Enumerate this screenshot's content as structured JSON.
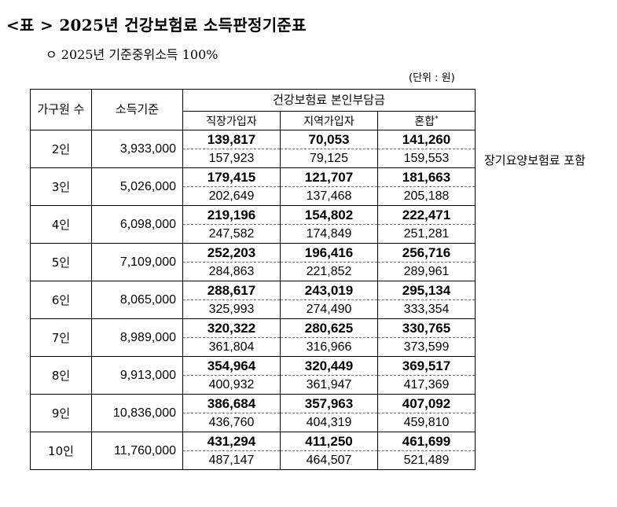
{
  "title": "<표 > 2025년 건강보험료 소득판정기준표",
  "subtitle": "ㅇ 2025년 기준중위소득 100%",
  "unit": "(단위 : 원)",
  "header": {
    "household": "가구원 수",
    "income": "소득기준",
    "group": "건강보험료 본인부담금",
    "employee": "직장가입자",
    "regional": "지역가입자",
    "mixed": "혼합",
    "mixed_mark": "*"
  },
  "rows": [
    {
      "household": "2인",
      "income": "3,933,000",
      "employee": "139,817",
      "regional": "70,053",
      "mixed": "141,260",
      "employee_ltc": "157,923",
      "regional_ltc": "79,125",
      "mixed_ltc": "159,553"
    },
    {
      "household": "3인",
      "income": "5,026,000",
      "employee": "179,415",
      "regional": "121,707",
      "mixed": "181,663",
      "employee_ltc": "202,649",
      "regional_ltc": "137,468",
      "mixed_ltc": "205,188"
    },
    {
      "household": "4인",
      "income": "6,098,000",
      "employee": "219,196",
      "regional": "154,802",
      "mixed": "222,471",
      "employee_ltc": "247,582",
      "regional_ltc": "174,849",
      "mixed_ltc": "251,281"
    },
    {
      "household": "5인",
      "income": "7,109,000",
      "employee": "252,203",
      "regional": "196,416",
      "mixed": "256,716",
      "employee_ltc": "284,863",
      "regional_ltc": "221,852",
      "mixed_ltc": "289,961"
    },
    {
      "household": "6인",
      "income": "8,065,000",
      "employee": "288,617",
      "regional": "243,019",
      "mixed": "295,134",
      "employee_ltc": "325,993",
      "regional_ltc": "274,490",
      "mixed_ltc": "333,354"
    },
    {
      "household": "7인",
      "income": "8,989,000",
      "employee": "320,322",
      "regional": "280,625",
      "mixed": "330,765",
      "employee_ltc": "361,804",
      "regional_ltc": "316,966",
      "mixed_ltc": "373,599"
    },
    {
      "household": "8인",
      "income": "9,913,000",
      "employee": "354,964",
      "regional": "320,449",
      "mixed": "369,517",
      "employee_ltc": "400,932",
      "regional_ltc": "361,947",
      "mixed_ltc": "417,369"
    },
    {
      "household": "9인",
      "income": "10,836,000",
      "employee": "386,684",
      "regional": "357,963",
      "mixed": "407,092",
      "employee_ltc": "436,760",
      "regional_ltc": "404,319",
      "mixed_ltc": "459,810"
    },
    {
      "household": "10인",
      "income": "11,760,000",
      "employee": "431,294",
      "regional": "411,250",
      "mixed": "461,699",
      "employee_ltc": "487,147",
      "regional_ltc": "464,507",
      "mixed_ltc": "521,489"
    }
  ],
  "note": "장기요양보험료 포함"
}
